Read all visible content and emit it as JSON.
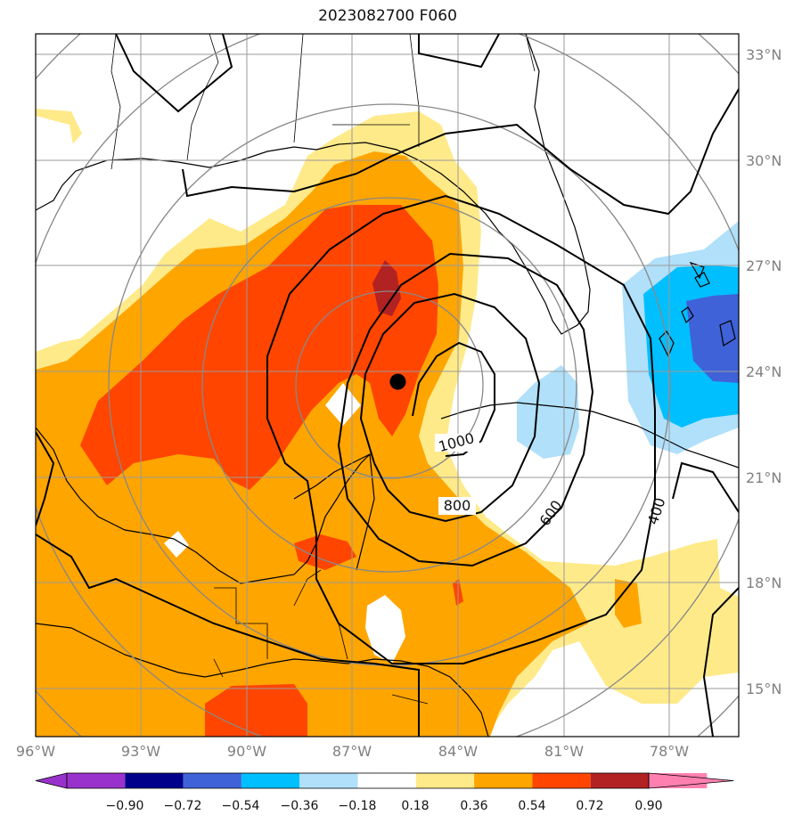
{
  "title": "2023082700 F060",
  "map": {
    "extent": {
      "lon_min": -96,
      "lon_max": -76.2,
      "lat_min": 13.4,
      "lat_max": 33.6
    },
    "lon_ticks": [
      "96°W",
      "93°W",
      "90°W",
      "87°W",
      "84°W",
      "81°W",
      "78°W"
    ],
    "lat_ticks": [
      "33°N",
      "30°N",
      "27°N",
      "24°N",
      "21°N",
      "18°N",
      "15°N"
    ],
    "storm_center": {
      "lon": -85.8,
      "lat": 23.6
    },
    "range_ring_count": 5,
    "contour_labels": [
      "1000",
      "800",
      "600",
      "400"
    ]
  },
  "colorbar": {
    "levels": [
      "−0.90",
      "−0.72",
      "−0.54",
      "−0.36",
      "−0.18",
      "0.18",
      "0.36",
      "0.54",
      "0.72",
      "0.90"
    ],
    "colors": [
      "#9932cc",
      "#00008b",
      "#4062d8",
      "#00bfff",
      "#b0e0fa",
      "#ffffff",
      "#ffea8a",
      "#ffa500",
      "#ff4500",
      "#b22222",
      "#ff80b0"
    ]
  }
}
